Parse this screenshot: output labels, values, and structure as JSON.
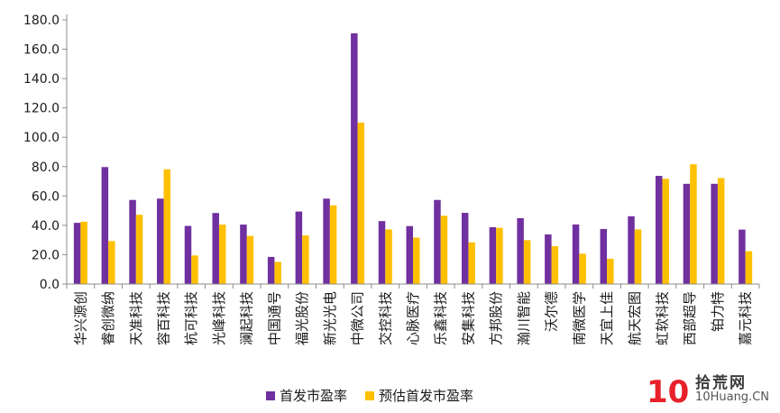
{
  "chart_data": {
    "type": "bar",
    "categories": [
      "华兴源创",
      "睿创微纳",
      "天准科技",
      "容百科技",
      "杭可科技",
      "光峰科技",
      "澜起科技",
      "中国通号",
      "福光股份",
      "新光光电",
      "中微公司",
      "交控科技",
      "心脉医疗",
      "乐鑫科技",
      "安集科技",
      "方邦股份",
      "瀚川智能",
      "沃尔德",
      "南微医学",
      "天宜上佳",
      "航天宏图",
      "虹软科技",
      "西部超导",
      "铂力特",
      "嘉元科技"
    ],
    "series": [
      {
        "name": "首发市盈率",
        "color": "#7030A0",
        "values": [
          41.7,
          79.7,
          57.3,
          58.2,
          39.6,
          48.4,
          40.5,
          18.5,
          49.4,
          58.2,
          170.8,
          42.9,
          39.5,
          57.3,
          48.5,
          38.7,
          44.9,
          33.8,
          40.6,
          37.5,
          46.2,
          73.7,
          68.3,
          68.3,
          37.1
        ]
      },
      {
        "name": "预估首发市盈率",
        "color": "#FFC000",
        "values": [
          42.5,
          29.3,
          47.2,
          78.2,
          19.5,
          40.5,
          32.8,
          15.1,
          33.1,
          53.6,
          110.0,
          37.2,
          31.6,
          46.5,
          28.4,
          38.3,
          29.9,
          25.8,
          20.7,
          17.2,
          37.2,
          71.7,
          81.6,
          72.2,
          22.4
        ]
      }
    ],
    "yticks": [
      "0.0",
      "20.0",
      "40.0",
      "60.0",
      "80.0",
      "100.0",
      "120.0",
      "140.0",
      "160.0",
      "180.0"
    ],
    "ylim": [
      0,
      180
    ],
    "title": "",
    "xlabel": "",
    "ylabel": "",
    "grid": false,
    "legend_position": "bottom"
  },
  "watermark": {
    "logo_text": "10",
    "site_cn": "拾荒网",
    "site_en": "10Huang.CN"
  }
}
